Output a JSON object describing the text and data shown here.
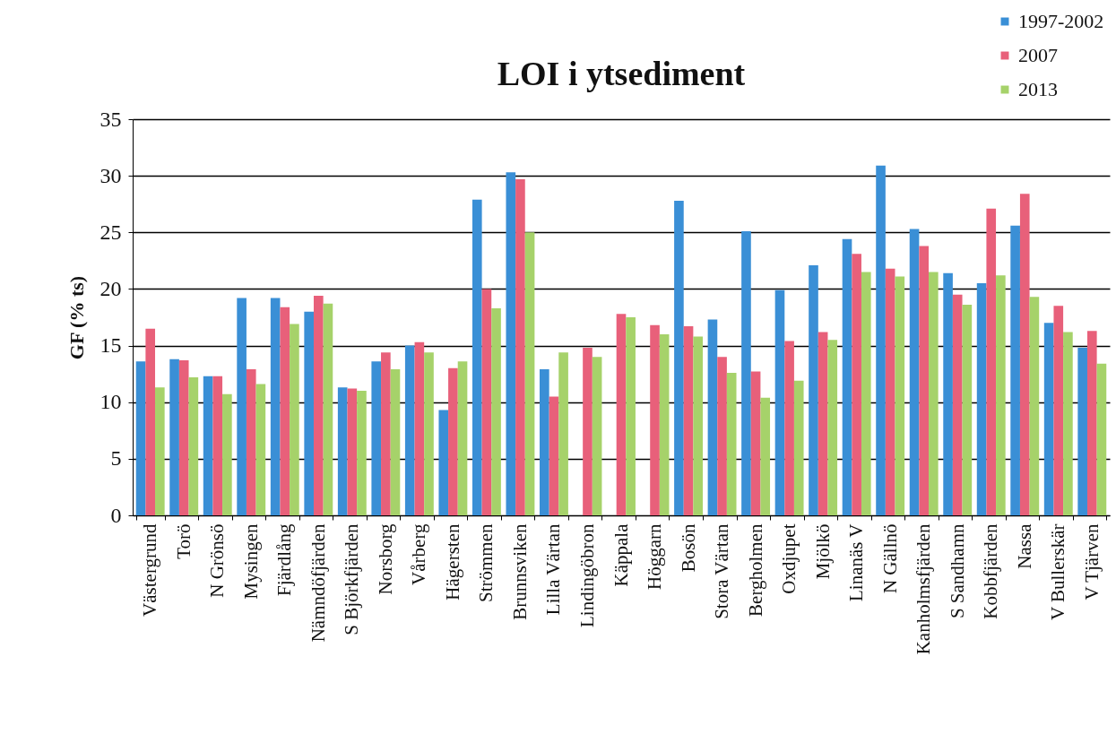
{
  "chart_data": {
    "type": "bar",
    "title": "LOI i ytsediment",
    "ylabel": "GF (% ts)",
    "categories": [
      "Västergrund",
      "Torö",
      "N Grönsö",
      "Mysingen",
      "Fjärdlång",
      "Nämndöfjärden",
      "S Björkfjärden",
      "Norsborg",
      "Vårberg",
      "Hägersten",
      "Strömmen",
      "Brunnsviken",
      "Lilla Värtan",
      "Lindingöbron",
      "Käppala",
      "Höggarn",
      "Bosön",
      "Stora Värtan",
      "Bergholmen",
      "Oxdjupet",
      "Mjölkö",
      "Linanäs V",
      "N Gällnö",
      "Kanholmsfjärden",
      "S Sandhamn",
      "Kobbfjärden",
      "Nassa",
      "V Bullerskär",
      "V Tjärven"
    ],
    "series": [
      {
        "name": "1997-2002",
        "color": "#3a8fd6",
        "values": [
          13.6,
          13.8,
          12.3,
          19.2,
          19.2,
          18.0,
          11.3,
          13.6,
          15.0,
          9.3,
          27.9,
          30.3,
          12.9,
          null,
          null,
          null,
          27.8,
          17.3,
          25.1,
          19.9,
          22.1,
          24.4,
          30.9,
          25.3,
          21.4,
          20.5,
          25.6,
          17.0,
          14.8
        ]
      },
      {
        "name": "2007",
        "color": "#e8607a",
        "values": [
          16.5,
          13.7,
          12.3,
          12.9,
          18.4,
          19.4,
          11.2,
          14.4,
          15.3,
          13.0,
          20.0,
          29.7,
          10.5,
          14.8,
          17.8,
          16.8,
          16.7,
          14.0,
          12.7,
          15.4,
          16.2,
          23.1,
          21.8,
          23.8,
          19.5,
          27.1,
          28.4,
          18.5,
          16.3
        ]
      },
      {
        "name": "2013",
        "color": "#a6d26a",
        "values": [
          11.3,
          12.2,
          10.7,
          11.6,
          16.9,
          18.7,
          11.0,
          12.9,
          14.4,
          13.6,
          18.3,
          25.0,
          14.4,
          14.0,
          17.5,
          16.0,
          15.8,
          12.6,
          10.4,
          11.9,
          15.5,
          21.5,
          21.1,
          21.5,
          18.6,
          21.2,
          19.3,
          16.2,
          13.4
        ]
      }
    ],
    "ylim": [
      0,
      35
    ],
    "yticks": [
      0,
      5,
      10,
      15,
      20,
      25,
      30,
      35
    ],
    "grid": "y",
    "legend": "top right"
  }
}
